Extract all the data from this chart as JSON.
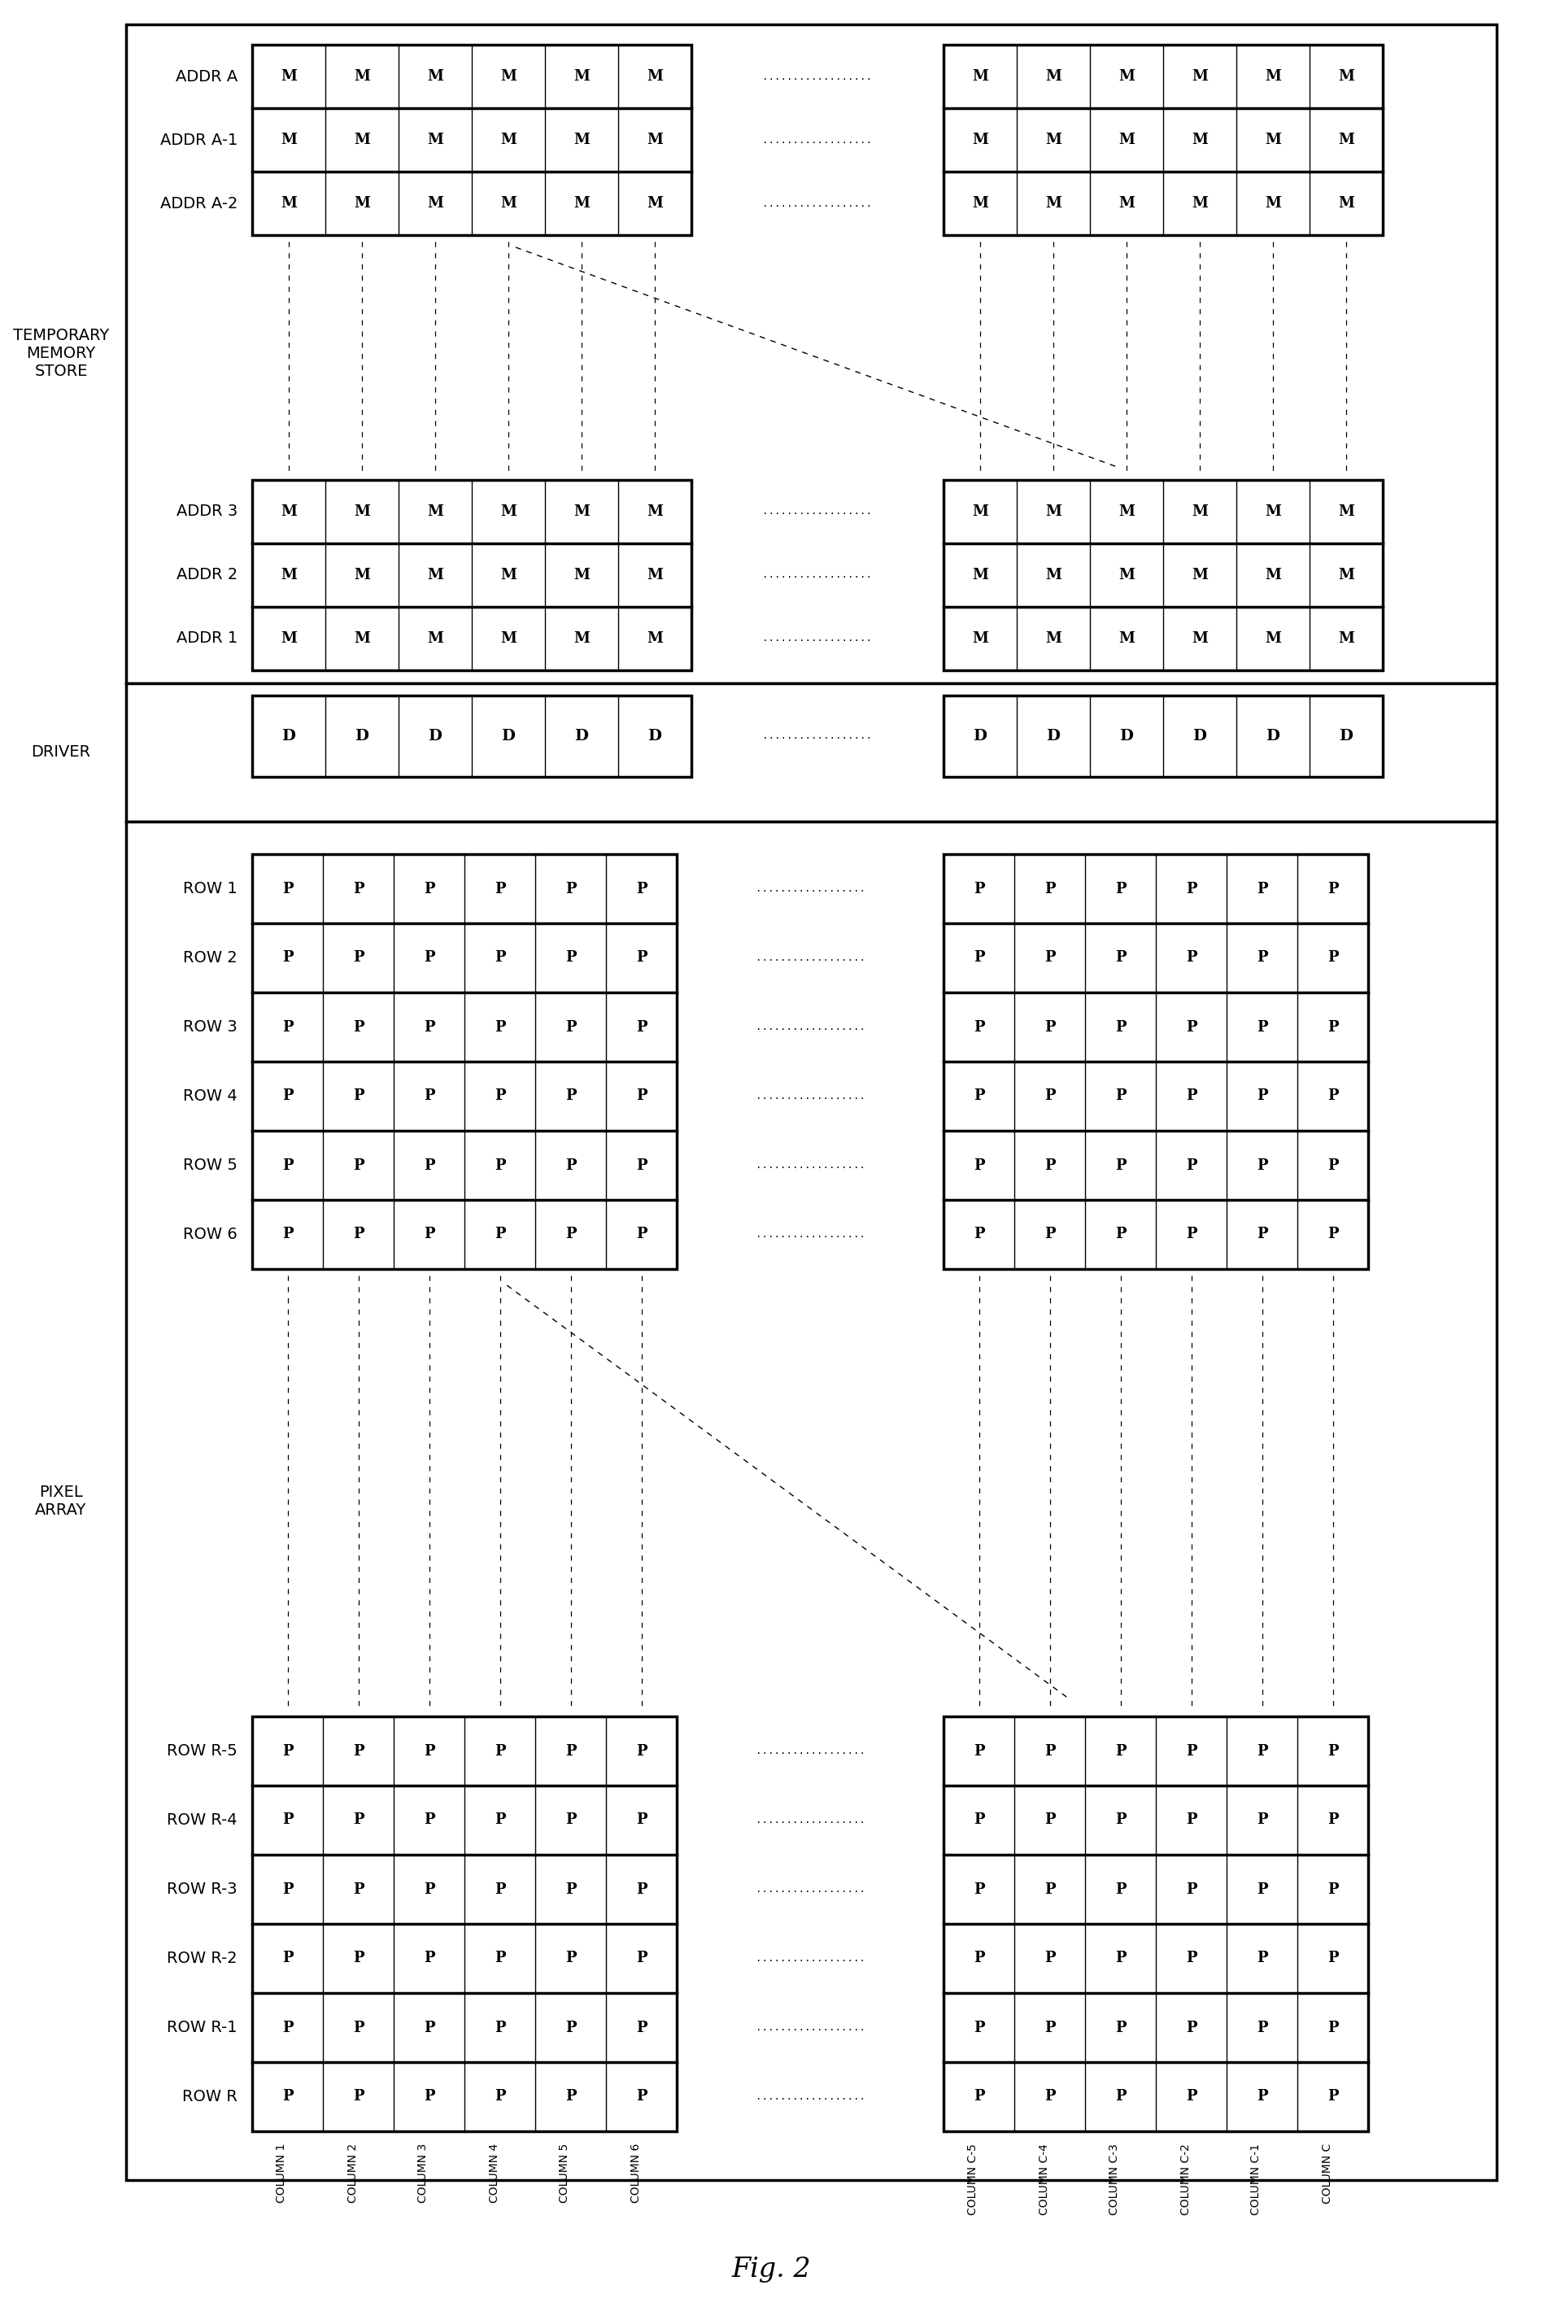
{
  "fig_width": 18.97,
  "fig_height": 28.52,
  "bg_color": "#ffffff",
  "title": "Fig. 2",
  "title_fontsize": 24,
  "label_fontsize": 14,
  "cell_fontsize": 13,
  "mem_rows_top": [
    "ADDR A",
    "ADDR A-1",
    "ADDR A-2"
  ],
  "mem_rows_bot": [
    "ADDR 3",
    "ADDR 2",
    "ADDR 1"
  ],
  "driver_label": "DRIVER",
  "pixel_rows_top": [
    "ROW 1",
    "ROW 2",
    "ROW 3",
    "ROW 4",
    "ROW 5",
    "ROW 6"
  ],
  "pixel_rows_bot": [
    "ROW R-5",
    "ROW R-4",
    "ROW R-3",
    "ROW R-2",
    "ROW R-1",
    "ROW R"
  ],
  "col_labels_left": [
    "COLUMN 1",
    "COLUMN 2",
    "COLUMN 3",
    "COLUMN 4",
    "COLUMN 5",
    "COLUMN 6"
  ],
  "col_labels_right": [
    "COLUMN C-5",
    "COLUMN C-4",
    "COLUMN C-3",
    "COLUMN C-2",
    "COLUMN C-1",
    "COLUMN C"
  ],
  "n_cols": 6,
  "mem_label": "TEMPORARY\nMEMORY\nSTORE",
  "pixel_label": "PIXEL\nARRAY",
  "dots": ".................."
}
